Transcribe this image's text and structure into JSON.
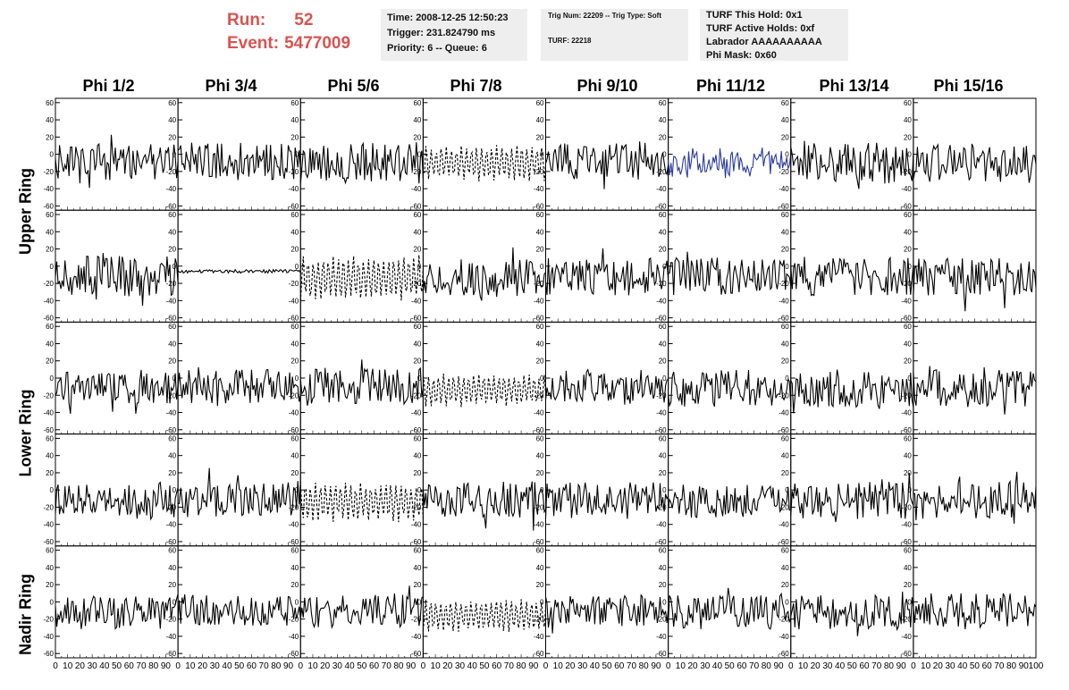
{
  "header": {
    "run_label": "Run:",
    "run_value": "52",
    "event_label": "Event:",
    "event_value": "5477009"
  },
  "info_time": {
    "time": "Time: 2008-12-25 12:50:23",
    "trigger": "Trigger: 231.824790 ms",
    "priority": "Priority: 6 -- Queue: 6"
  },
  "info_trig": {
    "trig": "Trig Num: 22209 -- Trig Type: Soft",
    "turf": "TURF: 22218"
  },
  "info_turf": {
    "hold": "TURF This Hold: 0x1",
    "active": "TURF Active Holds: 0xf",
    "labrador": "Labrador AAAAAAAAAA",
    "mask": "Phi Mask: 0x60"
  },
  "chart_data": {
    "type": "line",
    "title": "",
    "columns": [
      "Phi 1/2",
      "Phi 3/4",
      "Phi 5/6",
      "Phi 7/8",
      "Phi 9/10",
      "Phi 11/12",
      "Phi 13/14",
      "Phi 15/16"
    ],
    "rows": [
      "Upper Ring",
      "Upper Ring",
      "Lower Ring",
      "Lower Ring",
      "Nadir Ring"
    ],
    "row_labels": [
      "Upper Ring",
      "Lower Ring",
      "Nadir Ring"
    ],
    "ylim": [
      -65,
      65
    ],
    "xlim": [
      0,
      100
    ],
    "y_ticks": [
      60,
      40,
      20,
      0,
      -20,
      -40,
      -60
    ],
    "x_ticks": [
      0,
      10,
      20,
      30,
      40,
      50,
      60,
      70,
      80,
      90,
      100
    ],
    "samples": 91,
    "traces": [
      [
        "solid",
        22,
        -8,
        1,
        "#000000"
      ],
      [
        "solid",
        22,
        -8,
        2,
        "#000000"
      ],
      [
        "solid",
        24,
        -10,
        3,
        "#000000"
      ],
      [
        "dashed",
        22,
        -10,
        4,
        "#000000"
      ],
      [
        "solid",
        22,
        -8,
        5,
        "#000000"
      ],
      [
        "solid",
        16,
        -12,
        6,
        "#2b3a9e"
      ],
      [
        "solid",
        24,
        -10,
        7,
        "#000000"
      ],
      [
        "solid",
        24,
        -10,
        8,
        "#000000"
      ],
      [
        "solid",
        24,
        -12,
        9,
        "#000000"
      ],
      [
        "solid",
        2,
        -6,
        10,
        "#000000"
      ],
      [
        "dashed",
        28,
        -14,
        11,
        "#000000"
      ],
      [
        "solid",
        22,
        -14,
        12,
        "#000000"
      ],
      [
        "solid",
        22,
        -12,
        13,
        "#000000"
      ],
      [
        "solid",
        22,
        -12,
        14,
        "#000000"
      ],
      [
        "solid",
        22,
        -12,
        15,
        "#000000"
      ],
      [
        "solid",
        22,
        -12,
        16,
        "#000000"
      ],
      [
        "solid",
        20,
        -10,
        17,
        "#000000"
      ],
      [
        "solid",
        20,
        -10,
        18,
        "#000000"
      ],
      [
        "solid",
        22,
        -10,
        19,
        "#000000"
      ],
      [
        "dashed",
        20,
        -14,
        20,
        "#000000"
      ],
      [
        "solid",
        20,
        -10,
        21,
        "#000000"
      ],
      [
        "solid",
        22,
        -12,
        22,
        "#000000"
      ],
      [
        "solid",
        22,
        -12,
        23,
        "#000000"
      ],
      [
        "solid",
        22,
        -12,
        24,
        "#000000"
      ],
      [
        "solid",
        22,
        -12,
        25,
        "#000000"
      ],
      [
        "solid",
        22,
        -10,
        26,
        "#000000"
      ],
      [
        "dashed",
        24,
        -14,
        27,
        "#000000"
      ],
      [
        "solid",
        22,
        -12,
        28,
        "#000000"
      ],
      [
        "solid",
        22,
        -12,
        29,
        "#000000"
      ],
      [
        "solid",
        20,
        -12,
        30,
        "#000000"
      ],
      [
        "solid",
        22,
        -12,
        31,
        "#000000"
      ],
      [
        "solid",
        22,
        -12,
        32,
        "#000000"
      ],
      [
        "solid",
        20,
        -12,
        33,
        "#000000"
      ],
      [
        "solid",
        18,
        -10,
        34,
        "#000000"
      ],
      [
        "solid",
        20,
        -10,
        35,
        "#000000"
      ],
      [
        "dashed",
        20,
        -16,
        36,
        "#000000"
      ],
      [
        "solid",
        18,
        -10,
        37,
        "#000000"
      ],
      [
        "solid",
        20,
        -12,
        38,
        "#000000"
      ],
      [
        "solid",
        20,
        -12,
        39,
        "#000000"
      ],
      [
        "solid",
        20,
        -10,
        40,
        "#000000"
      ]
    ]
  }
}
